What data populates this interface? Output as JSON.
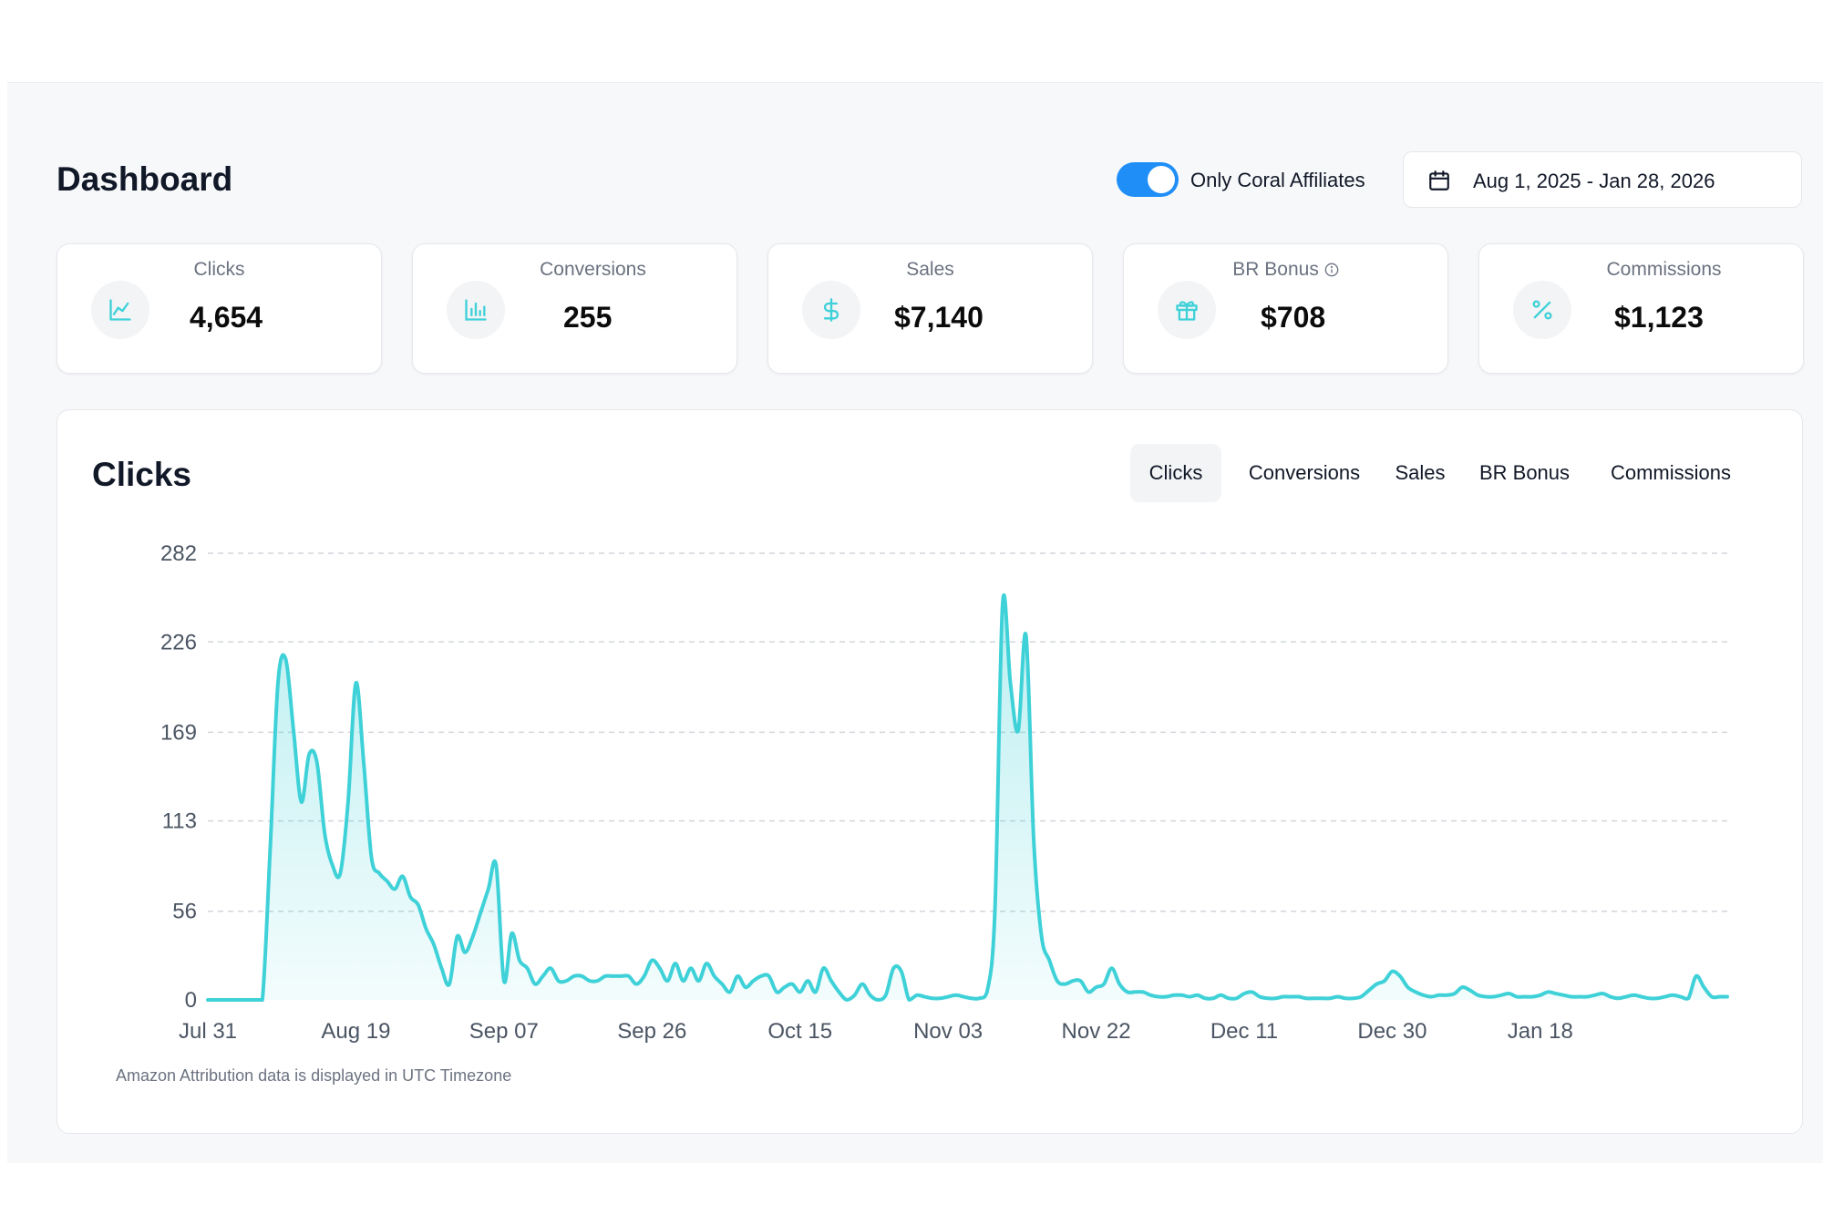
{
  "page": {
    "title": "Dashboard",
    "toggle": {
      "label": "Only Coral Affiliates",
      "on": true
    },
    "date_range": "Aug 1, 2025 - Jan 28, 2026"
  },
  "stats": [
    {
      "label": "Clicks",
      "value": "4,654",
      "icon": "line-chart-icon"
    },
    {
      "label": "Conversions",
      "value": "255",
      "icon": "bar-chart-icon"
    },
    {
      "label": "Sales",
      "value": "$7,140",
      "icon": "dollar-icon"
    },
    {
      "label": "BR Bonus",
      "value": "$708",
      "icon": "gift-icon"
    },
    {
      "label": "Commissions",
      "value": "$1,123",
      "icon": "percent-icon"
    }
  ],
  "chart_panel": {
    "title": "Clicks",
    "tabs": [
      "Clicks",
      "Conversions",
      "Sales",
      "BR Bonus",
      "Commissions"
    ],
    "active_tab": "Clicks",
    "footnote": "Amazon Attribution data is displayed in UTC Timezone"
  },
  "colors": {
    "accent": "#3fd1d8",
    "toggle": "#1f8ff7"
  },
  "chart_data": {
    "type": "area",
    "title": "Clicks",
    "xlabel": "",
    "ylabel": "",
    "y_ticks": [
      0,
      56,
      113,
      169,
      226,
      282
    ],
    "ylim": [
      0,
      282
    ],
    "x_tick_labels": [
      "Jul 31",
      "Aug 19",
      "Sep 07",
      "Sep 26",
      "Oct 15",
      "Nov 03",
      "Nov 22",
      "Dec 11",
      "Dec 30",
      "Jan 18"
    ],
    "x_start": "Jul 31",
    "grid": true,
    "values": [
      0,
      0,
      0,
      0,
      0,
      0,
      0,
      0,
      95,
      200,
      215,
      170,
      125,
      155,
      150,
      105,
      85,
      80,
      125,
      200,
      150,
      90,
      80,
      75,
      70,
      78,
      65,
      60,
      45,
      35,
      20,
      10,
      40,
      30,
      40,
      55,
      70,
      85,
      12,
      42,
      25,
      20,
      10,
      15,
      20,
      12,
      12,
      15,
      15,
      12,
      12,
      15,
      15,
      15,
      15,
      10,
      15,
      25,
      20,
      12,
      23,
      12,
      20,
      12,
      23,
      15,
      10,
      5,
      15,
      8,
      12,
      15,
      15,
      5,
      8,
      10,
      5,
      12,
      5,
      20,
      12,
      5,
      0,
      3,
      10,
      3,
      0,
      3,
      20,
      18,
      0,
      3,
      2,
      1,
      1,
      2,
      3,
      2,
      1,
      1,
      5,
      55,
      250,
      200,
      170,
      230,
      100,
      40,
      25,
      12,
      10,
      12,
      12,
      5,
      8,
      10,
      20,
      10,
      5,
      5,
      5,
      3,
      2,
      2,
      3,
      3,
      2,
      3,
      1,
      1,
      3,
      1,
      1,
      4,
      5,
      2,
      1,
      1,
      2,
      2,
      2,
      1,
      1,
      1,
      1,
      2,
      1,
      1,
      2,
      6,
      10,
      12,
      18,
      15,
      8,
      5,
      3,
      2,
      3,
      3,
      4,
      8,
      6,
      3,
      2,
      2,
      3,
      4,
      2,
      2,
      2,
      3,
      5,
      4,
      3,
      2,
      2,
      2,
      3,
      4,
      2,
      1,
      2,
      3,
      2,
      1,
      1,
      2,
      3,
      2,
      1,
      15,
      8,
      2,
      2,
      2
    ]
  }
}
